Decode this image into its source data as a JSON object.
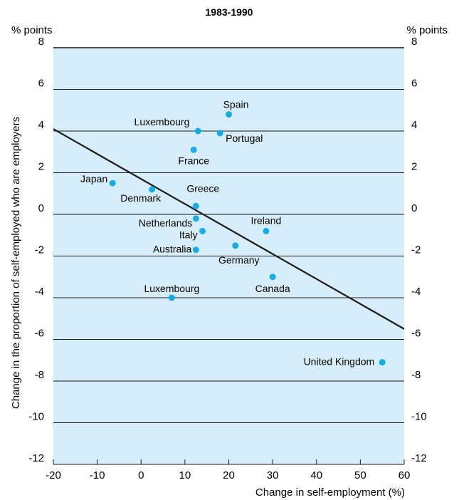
{
  "chart_data": {
    "type": "scatter",
    "title": "1983-1990",
    "xlabel": "Change in self-employment (%)",
    "ylabel": "Change in the proportion of self-employed who are employers",
    "y_unit_left": "% points",
    "y_unit_right": "% points",
    "xlim": [
      -20,
      60
    ],
    "ylim": [
      -12,
      8
    ],
    "x_ticks": [
      -20,
      -10,
      0,
      10,
      20,
      30,
      40,
      50,
      60
    ],
    "y_ticks": [
      8,
      6,
      4,
      2,
      0,
      -2,
      -4,
      -6,
      -8,
      -10,
      -12
    ],
    "grid": "horizontal",
    "colors": {
      "plot_background": "#d7eefa",
      "point": "#12aee8",
      "line": "#1a1a1a"
    },
    "points": [
      {
        "label": "Spain",
        "x": 20,
        "y": 4.8
      },
      {
        "label": "Luxembourg",
        "x": 13,
        "y": 4.0
      },
      {
        "label": "Portugal",
        "x": 18,
        "y": 3.9
      },
      {
        "label": "France",
        "x": 12,
        "y": 3.1
      },
      {
        "label": "Japan",
        "x": -6.5,
        "y": 1.5
      },
      {
        "label": "Denmark",
        "x": 2.5,
        "y": 1.2
      },
      {
        "label": "Greece",
        "x": 12.5,
        "y": 0.4
      },
      {
        "label": "Netherlands",
        "x": 12.5,
        "y": -0.2
      },
      {
        "label": "Italy",
        "x": 14,
        "y": -0.8
      },
      {
        "label": "Ireland",
        "x": 28.5,
        "y": -0.8
      },
      {
        "label": "Australia",
        "x": 12.5,
        "y": -1.7
      },
      {
        "label": "Germany",
        "x": 21.5,
        "y": -1.5
      },
      {
        "label": "Canada",
        "x": 30,
        "y": -3.0
      },
      {
        "label": "Luxembourg",
        "x": 7,
        "y": -4.0
      },
      {
        "label": "United Kingdom",
        "x": 55,
        "y": -7.1
      }
    ],
    "trend_line": {
      "x": [
        -20,
        60
      ],
      "y": [
        4.1,
        -5.5
      ]
    }
  }
}
